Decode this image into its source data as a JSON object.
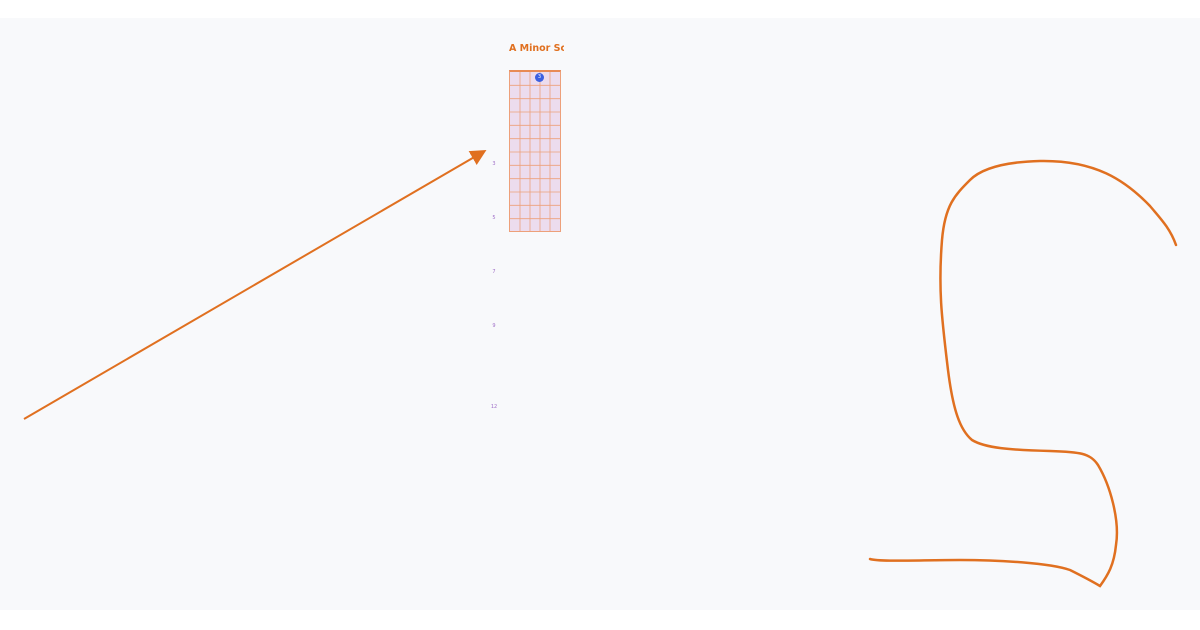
{
  "diagram": {
    "title": "A Minor Sca",
    "strings": 6,
    "frets": 12,
    "fret_markers": [
      "3",
      "5",
      "7",
      "9",
      "12"
    ],
    "dot_label": "3"
  },
  "colors": {
    "accent": "#e07020",
    "board": "#ecdcee",
    "grid": "#eda07a",
    "dot": "#3b5fe0",
    "marker_text": "#a070c8"
  }
}
